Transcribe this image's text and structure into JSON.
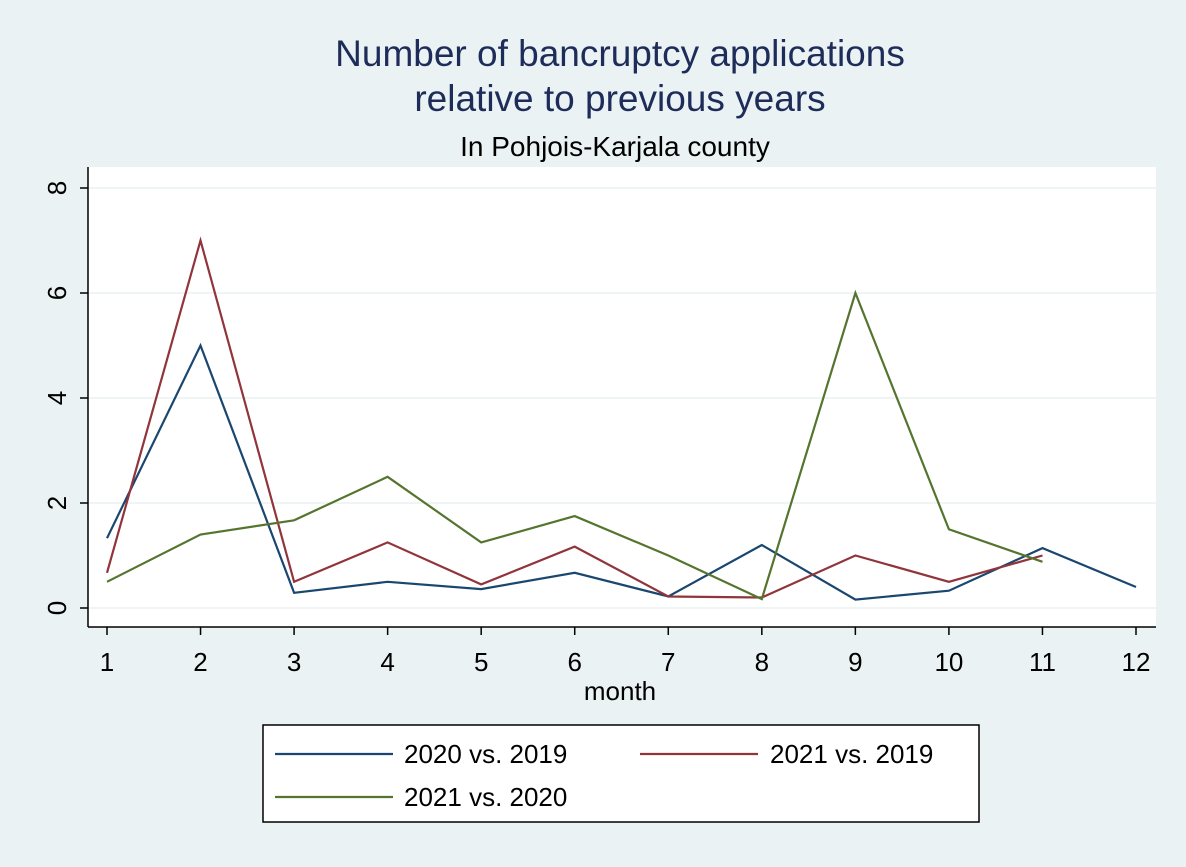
{
  "chart_data": {
    "type": "line",
    "title": "Number of bancruptcy applications",
    "title_line2": "relative to previous years",
    "subtitle": "In Pohjois-Karjala county",
    "xlabel": "month",
    "ylabel": "",
    "x": [
      1,
      2,
      3,
      4,
      5,
      6,
      7,
      8,
      9,
      10,
      11,
      12
    ],
    "xlim": [
      1,
      12
    ],
    "ylim": [
      0,
      8
    ],
    "yticks": [
      0,
      2,
      4,
      6,
      8
    ],
    "grid": true,
    "legend_position": "bottom",
    "series": [
      {
        "name": "2020 vs. 2019",
        "color": "#1a476f",
        "values": [
          1.33,
          5.0,
          0.29,
          0.5,
          0.36,
          0.67,
          0.22,
          1.2,
          0.16,
          0.33,
          1.14,
          0.4
        ]
      },
      {
        "name": "2021 vs. 2019",
        "color": "#90353b",
        "values": [
          0.67,
          7.0,
          0.5,
          1.25,
          0.45,
          1.17,
          0.22,
          0.2,
          1.0,
          0.5,
          1.0,
          null
        ]
      },
      {
        "name": "2021 vs. 2020",
        "color": "#55752f",
        "values": [
          0.5,
          1.4,
          1.67,
          2.5,
          1.25,
          1.75,
          1.0,
          0.17,
          6.0,
          1.5,
          0.88,
          null
        ]
      }
    ]
  }
}
